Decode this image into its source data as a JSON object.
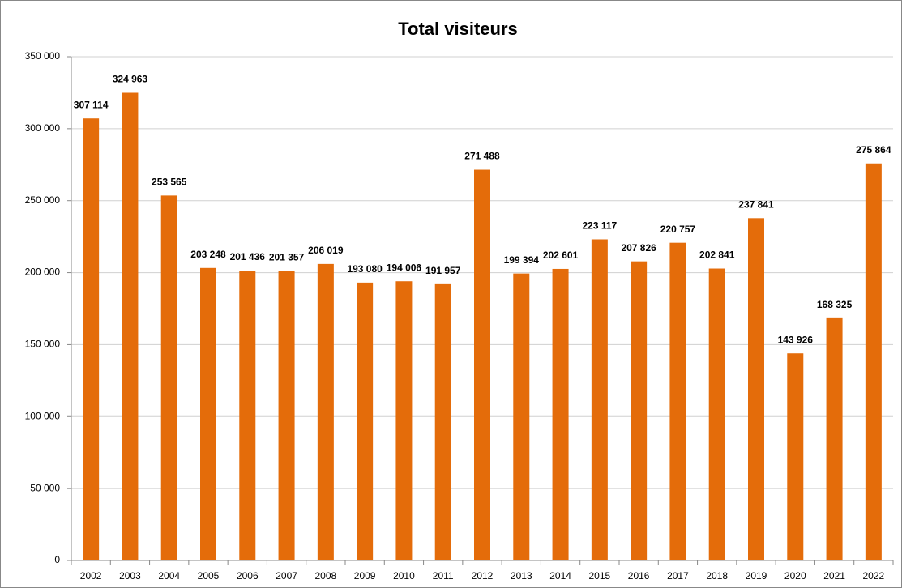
{
  "chart_data": {
    "type": "bar",
    "title": "Total visiteurs",
    "categories": [
      "2002",
      "2003",
      "2004",
      "2005",
      "2006",
      "2007",
      "2008",
      "2009",
      "2010",
      "2011",
      "2012",
      "2013",
      "2014",
      "2015",
      "2016",
      "2017",
      "2018",
      "2019",
      "2020",
      "2021",
      "2022"
    ],
    "values": [
      307114,
      324963,
      253565,
      203248,
      201436,
      201357,
      206019,
      193080,
      194006,
      191957,
      271488,
      199394,
      202601,
      223117,
      207826,
      220757,
      202841,
      237841,
      143926,
      168325,
      275864
    ],
    "value_labels": [
      "307 114",
      "324 963",
      "253 565",
      "203 248",
      "201 436",
      "201 357",
      "206 019",
      "193 080",
      "194 006",
      "191 957",
      "271 488",
      "199 394",
      "202 601",
      "223 117",
      "207 826",
      "220 757",
      "202 841",
      "237 841",
      "143 926",
      "168 325",
      "275 864"
    ],
    "color": "#e46c0a",
    "ylim": [
      0,
      350000
    ],
    "yticks": [
      0,
      {
        "value": 50000,
        "label": "50 000"
      },
      {
        "value": 100000,
        "label": "100 000"
      },
      {
        "value": 150000,
        "label": "150 000"
      },
      {
        "value": 200000,
        "label": "200 000"
      },
      {
        "value": 250000,
        "label": "250 000"
      },
      {
        "value": 300000,
        "label": "300 000"
      },
      {
        "value": 350000,
        "label": "350 000"
      }
    ],
    "grid": true
  }
}
